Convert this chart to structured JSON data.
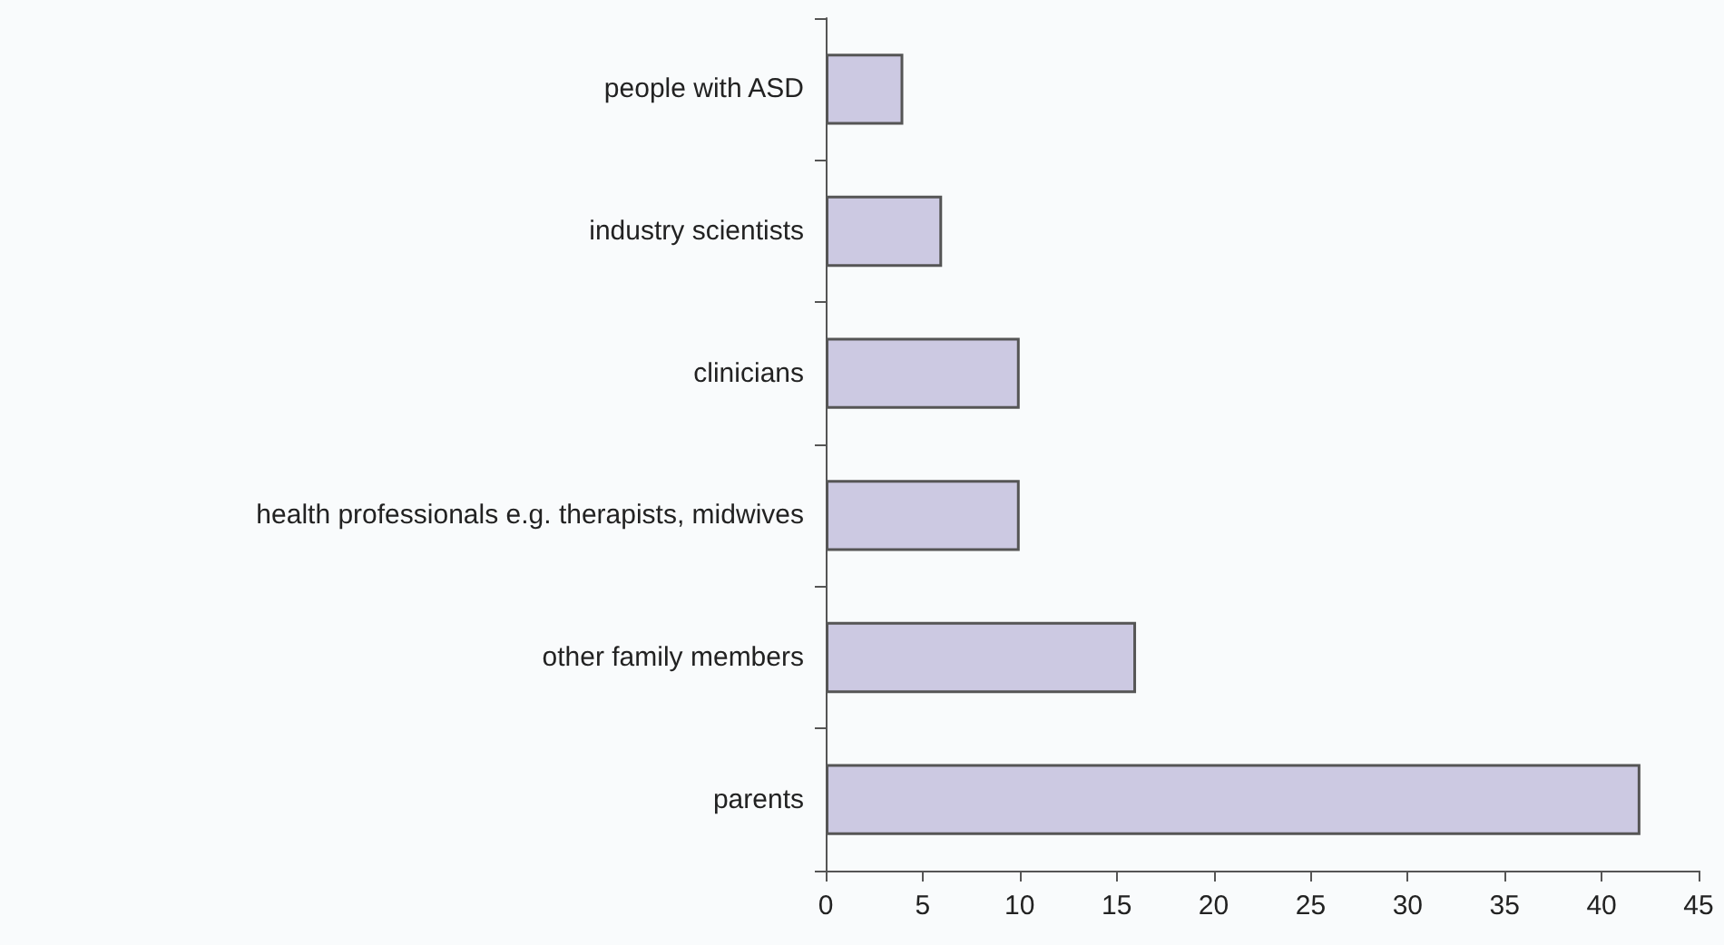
{
  "chart_data": {
    "type": "bar",
    "orientation": "horizontal",
    "categories": [
      "people with ASD",
      "industry scientists",
      "clinicians",
      "health professionals e.g. therapists, midwives",
      "other family members",
      "parents"
    ],
    "values": [
      4,
      6,
      10,
      10,
      16,
      42
    ],
    "color": "#ccc9e2",
    "xlim": [
      0,
      45
    ],
    "xticks": [
      0,
      5,
      10,
      15,
      20,
      25,
      30,
      35,
      40,
      45
    ],
    "grid": false
  }
}
